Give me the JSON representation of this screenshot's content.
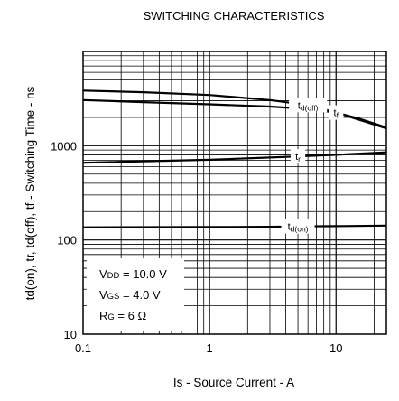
{
  "chart_data": {
    "type": "line",
    "title": "SWITCHING CHARACTERISTICS",
    "xlabel": "Is - Source Current - A",
    "ylabel": "td(on), tr, td(off), tf - Switching Time - ns",
    "x_scale": "log",
    "y_scale": "log",
    "xlim": [
      0.1,
      25
    ],
    "ylim": [
      10,
      10000
    ],
    "x_ticks": [
      {
        "value": 0.1,
        "label": "0.1"
      },
      {
        "value": 1,
        "label": "1"
      },
      {
        "value": 10,
        "label": "10"
      }
    ],
    "y_ticks": [
      {
        "value": 10,
        "label": "10"
      },
      {
        "value": 100,
        "label": "100"
      },
      {
        "value": 1000,
        "label": "1000"
      }
    ],
    "grid": true,
    "series": [
      {
        "name": "td(off)",
        "label_main": "t",
        "label_sub": "d(off)",
        "label_at": 4,
        "x": [
          0.1,
          0.3,
          1,
          3,
          6,
          10,
          15,
          25
        ],
        "y": [
          3850,
          3700,
          3450,
          3050,
          2700,
          2250,
          1900,
          1530
        ]
      },
      {
        "name": "tf",
        "label_main": "t",
        "label_sub": "f",
        "label_at": 5,
        "x": [
          0.1,
          0.3,
          1,
          3,
          6,
          10,
          15,
          25
        ],
        "y": [
          3050,
          2900,
          2750,
          2600,
          2450,
          2250,
          1950,
          1560
        ]
      },
      {
        "name": "tr",
        "label_main": "t",
        "label_sub": "r",
        "label_at": 3,
        "x": [
          0.1,
          1,
          3,
          5,
          10,
          25
        ],
        "y": [
          660,
          710,
          750,
          770,
          800,
          850
        ]
      },
      {
        "name": "td(on)",
        "label_main": "t",
        "label_sub": "d(on)",
        "label_at": 3,
        "x": [
          0.1,
          1,
          3,
          5,
          10,
          25
        ],
        "y": [
          136,
          137,
          138,
          139,
          140,
          142
        ]
      }
    ],
    "conditions": [
      {
        "sym": "V",
        "sub": "DD",
        "value": " = 10.0 V"
      },
      {
        "sym": "V",
        "sub": "GS",
        "value": " = 4.0 V"
      },
      {
        "sym": "R",
        "sub": "G",
        "value": " = 6 Ω"
      }
    ]
  }
}
